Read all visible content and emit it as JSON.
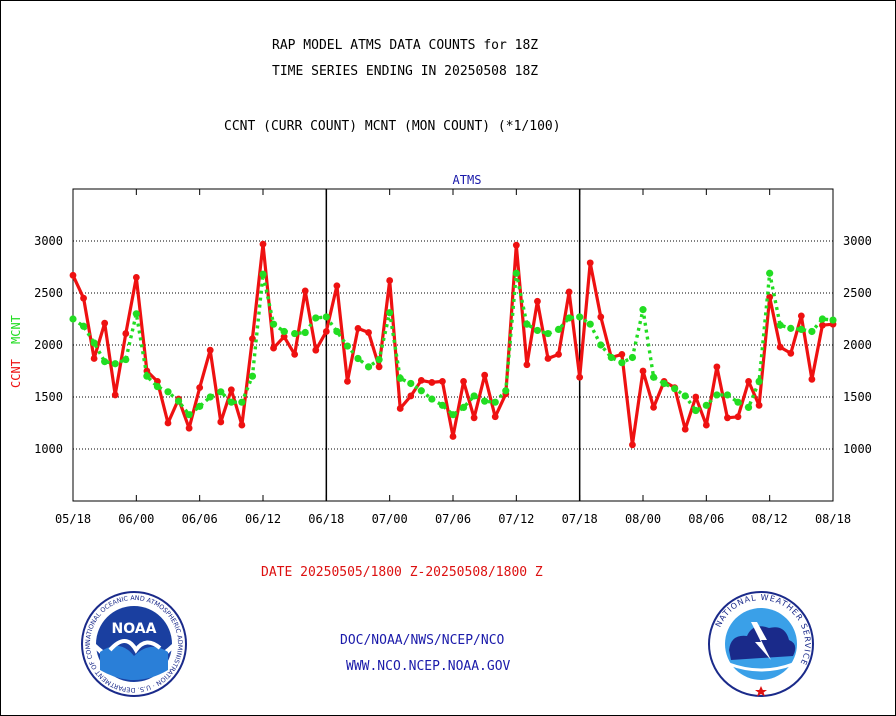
{
  "header": {
    "title1": "RAP MODEL ATMS DATA COUNTS for 18Z",
    "title2": "TIME SERIES ENDING IN 20250508 18Z",
    "subtitle": "CCNT (CURR COUNT) MCNT (MON COUNT) (*1/100)"
  },
  "footer": {
    "date_range": "DATE 20250505/1800 Z-20250508/1800 Z",
    "org": "DOC/NOAA/NWS/NCEP/NCO",
    "url": "WWW.NCO.NCEP.NOAA.GOV"
  },
  "logos": {
    "noaa_text": "NOAA",
    "noaa_ring": "NATIONAL OCEANIC AND ATMOSPHERIC ADMINISTRATION · U.S. DEPARTMENT OF COMMERCE ·",
    "nws_ring": "NATIONAL WEATHER SERVICE"
  },
  "colors": {
    "ccnt": "#ee1111",
    "mcnt": "#22dd22",
    "panel_title": "#1a1aaa",
    "footer_red": "#dd1111",
    "footer_blue": "#1a1aaa"
  },
  "chart_data": {
    "type": "line",
    "title": "ATMS",
    "ylabel_ccnt": "CCNT",
    "ylabel_mcnt": "MCNT",
    "ylim": [
      500,
      3500
    ],
    "yticks": [
      1000,
      1500,
      2000,
      2500,
      3000
    ],
    "xlim": [
      0,
      72
    ],
    "xticks": [
      {
        "x": 0,
        "label": "05/18"
      },
      {
        "x": 6,
        "label": "06/00"
      },
      {
        "x": 12,
        "label": "06/06"
      },
      {
        "x": 18,
        "label": "06/12"
      },
      {
        "x": 24,
        "label": "06/18"
      },
      {
        "x": 30,
        "label": "07/00"
      },
      {
        "x": 36,
        "label": "07/06"
      },
      {
        "x": 42,
        "label": "07/12"
      },
      {
        "x": 48,
        "label": "07/18"
      },
      {
        "x": 54,
        "label": "08/00"
      },
      {
        "x": 60,
        "label": "08/06"
      },
      {
        "x": 66,
        "label": "08/12"
      },
      {
        "x": 72,
        "label": "08/18"
      }
    ],
    "day_boundaries": [
      24,
      48
    ],
    "grid": true,
    "series": [
      {
        "name": "CCNT",
        "values": [
          [
            0,
            2670
          ],
          [
            1,
            2450
          ],
          [
            2,
            1870
          ],
          [
            3,
            2210
          ],
          [
            4,
            1520
          ],
          [
            5,
            2110
          ],
          [
            6,
            2650
          ],
          [
            7,
            1750
          ],
          [
            8,
            1650
          ],
          [
            9,
            1250
          ],
          [
            10,
            1480
          ],
          [
            11,
            1200
          ],
          [
            12,
            1590
          ],
          [
            13,
            1950
          ],
          [
            14,
            1260
          ],
          [
            15,
            1570
          ],
          [
            16,
            1230
          ],
          [
            17,
            2060
          ],
          [
            18,
            2970
          ],
          [
            19,
            1970
          ],
          [
            20,
            2080
          ],
          [
            21,
            1910
          ],
          [
            22,
            2520
          ],
          [
            23,
            1950
          ],
          [
            24,
            2130
          ],
          [
            25,
            2570
          ],
          [
            26,
            1650
          ],
          [
            27,
            2160
          ],
          [
            28,
            2120
          ],
          [
            29,
            1790
          ],
          [
            30,
            2620
          ],
          [
            31,
            1390
          ],
          [
            32,
            1510
          ],
          [
            33,
            1660
          ],
          [
            34,
            1640
          ],
          [
            35,
            1650
          ],
          [
            36,
            1120
          ],
          [
            37,
            1650
          ],
          [
            38,
            1300
          ],
          [
            39,
            1710
          ],
          [
            40,
            1310
          ],
          [
            41,
            1530
          ],
          [
            42,
            2960
          ],
          [
            43,
            1810
          ],
          [
            44,
            2420
          ],
          [
            45,
            1870
          ],
          [
            46,
            1910
          ],
          [
            47,
            2510
          ],
          [
            48,
            1690
          ],
          [
            49,
            2790
          ],
          [
            50,
            2270
          ],
          [
            51,
            1880
          ],
          [
            52,
            1910
          ],
          [
            53,
            1040
          ],
          [
            54,
            1750
          ],
          [
            55,
            1400
          ],
          [
            56,
            1650
          ],
          [
            57,
            1590
          ],
          [
            58,
            1190
          ],
          [
            59,
            1500
          ],
          [
            60,
            1230
          ],
          [
            61,
            1790
          ],
          [
            62,
            1300
          ],
          [
            63,
            1310
          ],
          [
            64,
            1650
          ],
          [
            65,
            1420
          ],
          [
            66,
            2460
          ],
          [
            67,
            1980
          ],
          [
            68,
            1920
          ],
          [
            69,
            2280
          ],
          [
            70,
            1670
          ],
          [
            71,
            2190
          ],
          [
            72,
            2200
          ]
        ]
      },
      {
        "name": "MCNT",
        "values": [
          [
            0,
            2250
          ],
          [
            1,
            2180
          ],
          [
            2,
            2020
          ],
          [
            3,
            1840
          ],
          [
            4,
            1820
          ],
          [
            5,
            1860
          ],
          [
            6,
            2300
          ],
          [
            7,
            1700
          ],
          [
            8,
            1600
          ],
          [
            9,
            1550
          ],
          [
            10,
            1460
          ],
          [
            11,
            1330
          ],
          [
            12,
            1410
          ],
          [
            13,
            1500
          ],
          [
            14,
            1550
          ],
          [
            15,
            1450
          ],
          [
            16,
            1450
          ],
          [
            17,
            1700
          ],
          [
            18,
            2680
          ],
          [
            19,
            2200
          ],
          [
            20,
            2130
          ],
          [
            21,
            2110
          ],
          [
            22,
            2120
          ],
          [
            23,
            2260
          ],
          [
            24,
            2270
          ],
          [
            25,
            2130
          ],
          [
            26,
            1990
          ],
          [
            27,
            1870
          ],
          [
            28,
            1790
          ],
          [
            29,
            1860
          ],
          [
            30,
            2310
          ],
          [
            31,
            1680
          ],
          [
            32,
            1630
          ],
          [
            33,
            1560
          ],
          [
            34,
            1480
          ],
          [
            35,
            1420
          ],
          [
            36,
            1330
          ],
          [
            37,
            1400
          ],
          [
            38,
            1510
          ],
          [
            39,
            1460
          ],
          [
            40,
            1450
          ],
          [
            41,
            1560
          ],
          [
            42,
            2690
          ],
          [
            43,
            2200
          ],
          [
            44,
            2140
          ],
          [
            45,
            2110
          ],
          [
            46,
            2150
          ],
          [
            47,
            2260
          ],
          [
            48,
            2270
          ],
          [
            49,
            2200
          ],
          [
            50,
            2000
          ],
          [
            51,
            1880
          ],
          [
            52,
            1830
          ],
          [
            53,
            1880
          ],
          [
            54,
            2340
          ],
          [
            55,
            1690
          ],
          [
            56,
            1630
          ],
          [
            57,
            1580
          ],
          [
            58,
            1510
          ],
          [
            59,
            1370
          ],
          [
            60,
            1420
          ],
          [
            61,
            1520
          ],
          [
            62,
            1520
          ],
          [
            63,
            1450
          ],
          [
            64,
            1400
          ],
          [
            65,
            1650
          ],
          [
            66,
            2690
          ],
          [
            67,
            2190
          ],
          [
            68,
            2160
          ],
          [
            69,
            2150
          ],
          [
            70,
            2130
          ],
          [
            71,
            2250
          ],
          [
            72,
            2240
          ]
        ]
      }
    ]
  }
}
